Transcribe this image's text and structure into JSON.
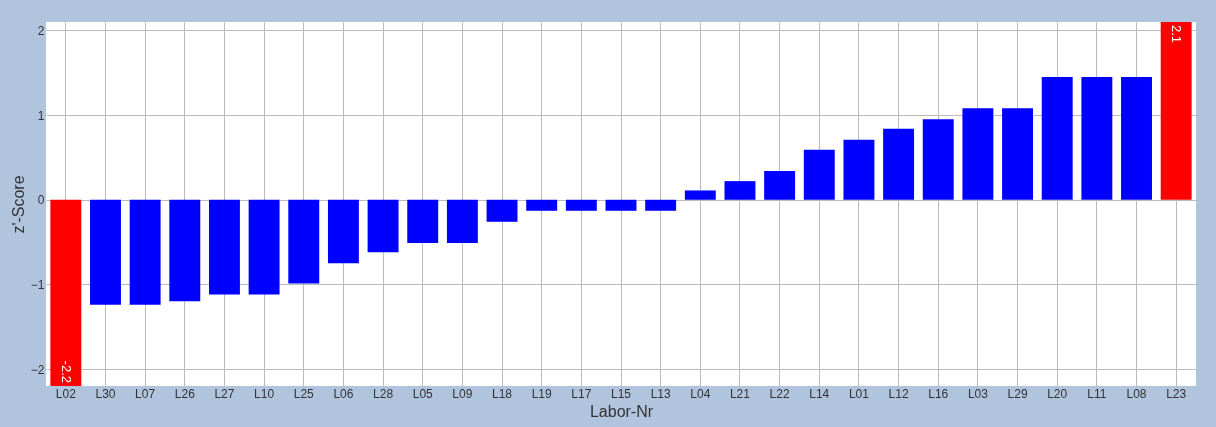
{
  "chart_data": {
    "type": "bar",
    "xlabel": "Labor-Nr",
    "ylabel": "z'-Score",
    "categories": [
      "L02",
      "L30",
      "L07",
      "L26",
      "L27",
      "L10",
      "L25",
      "L06",
      "L28",
      "L05",
      "L09",
      "L18",
      "L19",
      "L17",
      "L15",
      "L13",
      "L04",
      "L21",
      "L22",
      "L14",
      "L01",
      "L12",
      "L16",
      "L03",
      "L29",
      "L20",
      "L11",
      "L08",
      "L23"
    ],
    "values": [
      -2.2,
      -1.24,
      -1.24,
      -1.2,
      -1.12,
      -1.12,
      -0.99,
      -0.75,
      -0.62,
      -0.51,
      -0.51,
      -0.26,
      -0.13,
      -0.13,
      -0.13,
      -0.13,
      0.11,
      0.22,
      0.34,
      0.59,
      0.71,
      0.84,
      0.95,
      1.08,
      1.08,
      1.45,
      1.45,
      1.45,
      2.1
    ],
    "colors": [
      "#ff0000",
      "#0000ff",
      "#0000ff",
      "#0000ff",
      "#0000ff",
      "#0000ff",
      "#0000ff",
      "#0000ff",
      "#0000ff",
      "#0000ff",
      "#0000ff",
      "#0000ff",
      "#0000ff",
      "#0000ff",
      "#0000ff",
      "#0000ff",
      "#0000ff",
      "#0000ff",
      "#0000ff",
      "#0000ff",
      "#0000ff",
      "#0000ff",
      "#0000ff",
      "#0000ff",
      "#0000ff",
      "#0000ff",
      "#0000ff",
      "#0000ff",
      "#ff0000"
    ],
    "value_labels": [
      "-2.2",
      null,
      null,
      null,
      null,
      null,
      null,
      null,
      null,
      null,
      null,
      null,
      null,
      null,
      null,
      null,
      null,
      null,
      null,
      null,
      null,
      null,
      null,
      null,
      null,
      null,
      null,
      null,
      "2.1"
    ],
    "ylim": [
      -2.2,
      2.1
    ],
    "yticks": [
      -2,
      -1,
      0,
      1,
      2
    ],
    "grid": true
  }
}
